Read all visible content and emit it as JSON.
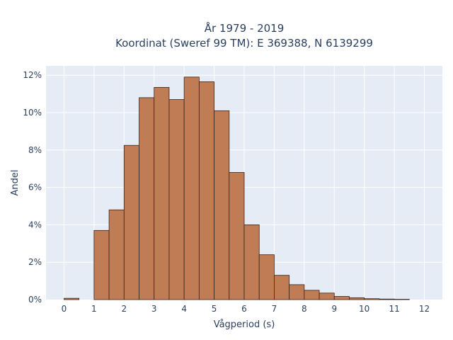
{
  "chart_data": {
    "type": "bar",
    "title": "År 1979 - 2019",
    "subtitle": "Koordinat (Sweref 99 TM): E 369388, N 6139299",
    "xlabel": "Vågperiod (s)",
    "ylabel": "Andel",
    "bin_width": 0.5,
    "bin_starts": [
      0,
      0.5,
      1,
      1.5,
      2,
      2.5,
      3,
      3.5,
      4,
      4.5,
      5,
      5.5,
      6,
      6.5,
      7,
      7.5,
      8,
      8.5,
      9,
      9.5,
      10,
      10.5,
      11,
      11.5
    ],
    "values": [
      0.0007,
      0,
      0.037,
      0.048,
      0.0825,
      0.108,
      0.1135,
      0.107,
      0.119,
      0.1165,
      0.101,
      0.068,
      0.04,
      0.024,
      0.013,
      0.008,
      0.005,
      0.0035,
      0.0017,
      0.001,
      0.0005,
      0.0003,
      0.0002,
      0
    ],
    "xlim": [
      -0.6,
      12.6
    ],
    "ylim": [
      0,
      0.125
    ],
    "xticks": [
      0,
      1,
      2,
      3,
      4,
      5,
      6,
      7,
      8,
      9,
      10,
      11,
      12
    ],
    "yticks": [
      0,
      0.02,
      0.04,
      0.06,
      0.08,
      0.1,
      0.12
    ],
    "ytick_labels": [
      "0%",
      "2%",
      "4%",
      "6%",
      "8%",
      "10%",
      "12%"
    ],
    "grid": true,
    "colors": {
      "bar_fill": "#C07C55",
      "bar_stroke": "#3a2418",
      "plot_bg": "#E5ECF6",
      "grid": "#ffffff",
      "text": "#2a3f5f"
    }
  }
}
